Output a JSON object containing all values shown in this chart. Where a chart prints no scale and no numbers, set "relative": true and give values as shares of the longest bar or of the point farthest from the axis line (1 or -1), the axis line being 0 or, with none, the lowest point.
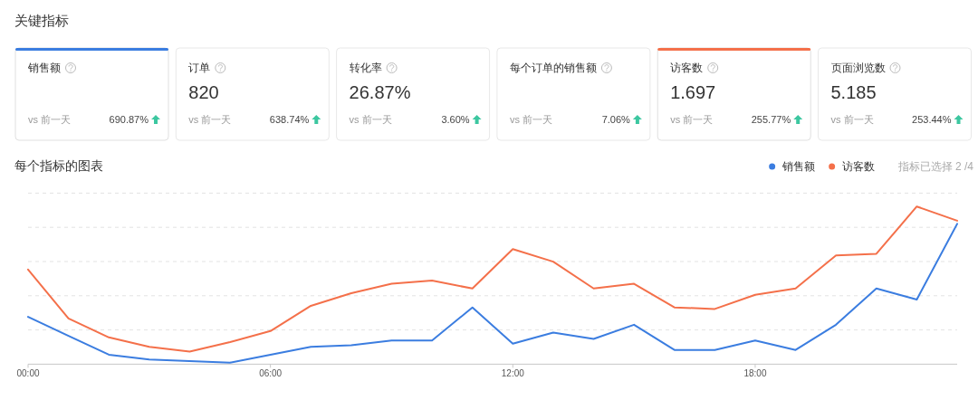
{
  "chart_data": [
    {
      "type": "other",
      "title": "关键指标",
      "categories": [
        "销售额",
        "订单",
        "转化率",
        "每个订单的销售额",
        "访客数",
        "页面浏览数"
      ],
      "value_labels": [
        null,
        "820",
        "26.87%",
        null,
        "1.697",
        "5.185"
      ],
      "annotations": [
        "vs 前一天",
        "690.87%",
        "vs 前一天",
        "638.74%",
        "vs 前一天",
        "3.60%",
        "vs 前一天",
        "7.06%",
        "vs 前一天",
        "255.77%",
        "vs 前一天",
        "253.44%"
      ]
    },
    {
      "type": "line",
      "title": "每个指标的图表",
      "relative": true,
      "grid": true,
      "legend": "top right",
      "marker": "none",
      "line_style": "solid",
      "x": [
        0,
        1,
        2,
        3,
        4,
        5,
        6,
        7,
        8,
        9,
        10,
        11,
        12,
        13,
        14,
        15,
        16,
        17,
        18,
        19,
        20,
        21,
        22,
        23
      ],
      "xlim": [
        0,
        23
      ],
      "xticks": [
        {
          "value": 0,
          "label": "00:00"
        },
        {
          "value": 6,
          "label": "06:00"
        },
        {
          "value": 12,
          "label": "12:00"
        },
        {
          "value": 18,
          "label": "18:00"
        }
      ],
      "annotations": [
        "指标已选择 2 /4"
      ],
      "series": [
        {
          "name": "销售额",
          "color": "#3b7de0",
          "values": [
            0.3,
            0.18,
            0.06,
            0.03,
            0.02,
            0.01,
            0.06,
            0.11,
            0.12,
            0.15,
            0.15,
            0.36,
            0.13,
            0.2,
            0.16,
            0.25,
            0.09,
            0.09,
            0.15,
            0.09,
            0.25,
            0.48,
            0.41,
            0.89
          ]
        },
        {
          "name": "访客数",
          "color": "#f4704a",
          "values": [
            0.6,
            0.29,
            0.17,
            0.11,
            0.08,
            0.14,
            0.21,
            0.37,
            0.45,
            0.51,
            0.53,
            0.48,
            0.73,
            0.65,
            0.48,
            0.51,
            0.36,
            0.35,
            0.44,
            0.48,
            0.69,
            0.7,
            1,
            0.91
          ]
        }
      ]
    }
  ]
}
